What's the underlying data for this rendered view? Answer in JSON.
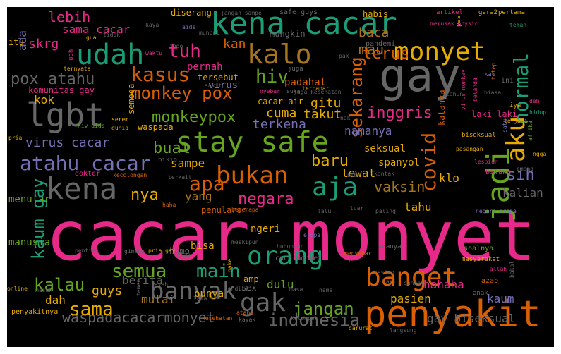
{
  "title": "word cloud",
  "palette": {
    "pink": "#e7298a",
    "teal": "#1b9e77",
    "orange": "#d95f02",
    "purple": "#7570b3",
    "green": "#66a61e",
    "gold": "#e6ab02",
    "brown": "#a6761d",
    "gray": "#666666"
  },
  "words": [
    "cacar monyet",
    "penyakit",
    "gay",
    "kena cacar",
    "lgbt",
    "stay safe",
    "kena",
    "udah",
    "monyet",
    "aja",
    "kalo",
    "orang",
    "jadi",
    "banget",
    "bukan",
    "aku",
    "atahu cacar",
    "banyak",
    "gak",
    "waspadacacarmonyet",
    "covid",
    "normal",
    "sekarang",
    "kasus",
    "monkey pox",
    "semua",
    "main",
    "apa",
    "hiv",
    "tuh",
    "monkeypox",
    "sama",
    "kalau",
    "kaum gay",
    "indonesia",
    "jangan",
    "pox atahu",
    "buat",
    "sih",
    "nya",
    "negara",
    "inggris",
    "terus",
    "baru",
    "vaksin",
    "baca",
    "mau",
    "lebih",
    "sama cacar",
    "skrg",
    "ada",
    "kan",
    "cuma",
    "gitu",
    "takut",
    "terkena",
    "virus cacar",
    "sampe",
    "yang",
    "kalian",
    "tahu",
    "hahaha",
    "pasien",
    "gay biseksual",
    "kaum",
    "guys",
    "berita",
    "mulai",
    "dulu",
    "dah",
    "kok",
    "klo",
    "lewat",
    "namanya",
    "bisa",
    "manusia",
    "menular",
    "seksual",
    "spanyol",
    "ngeri",
    "penularan",
    "homo",
    "amp",
    "sex",
    "punya",
    "komunitas gay",
    "semoga",
    "waspada",
    "pernah",
    "padahal",
    "cacar air",
    "katanya",
    "laki laki",
    "tersebut",
    "virus",
    "diserang",
    "habis",
    "artikel",
    "gara2",
    "pertama",
    "jangan sampe",
    "safe guys",
    "pas",
    "kaya",
    "aids",
    "muncul",
    "mungkin",
    "pandemi",
    "merusak physic",
    "tidak",
    "gua",
    "waktu",
    "indo",
    "itu",
    "udh",
    "sakit",
    "nyebar",
    "juga",
    "pak",
    "ternyata",
    "virus monkey",
    "tetep",
    "teman",
    "kau",
    "ini",
    "belanda",
    "tahun",
    "biasa",
    "iya",
    "deh",
    "hidup",
    "terjadi",
    "satu",
    "afrika",
    "ngga",
    "pasangan",
    "serem",
    "hiv aids",
    "pria",
    "dunia",
    "nak",
    "jaga kesehatan",
    "terpapar",
    "suka",
    "biseksual",
    "bikin",
    "lesbian",
    "bilang",
    "emang",
    "dokter",
    "kecolongan",
    "terkait",
    "blm",
    "kontak",
    "beberapa",
    "haha",
    "lalu",
    "luar",
    "paling",
    "negara eropa",
    "penting",
    "gimana",
    "pria gay",
    "tetap",
    "hubungan",
    "adanya",
    "eropa",
    "meskipun",
    "cacarmonyet",
    "menyebar",
    "nih",
    "pake",
    "masyarakat",
    "allah",
    "soalnya",
    "online",
    "masuk",
    "sayah",
    "temen",
    "sendiri",
    "kasian",
    "hari",
    "sangat",
    "bakal",
    "azab",
    "lama",
    "masa",
    "nama",
    "anak",
    "penyakitnya",
    "kesehatan",
    "kayak",
    "atahu",
    "kelompok",
    "darurat",
    "langsung"
  ]
}
